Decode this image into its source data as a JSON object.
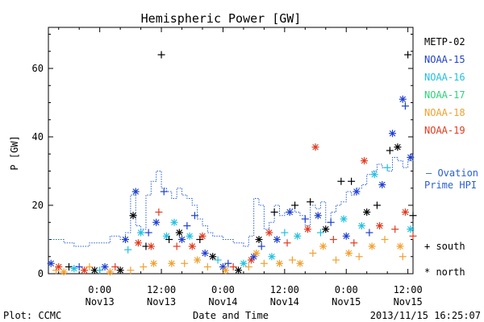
{
  "chart_data": {
    "type": "scatter",
    "title": "Hemispheric Power [GW]",
    "ylabel": "P [GW]",
    "xlabel": "Date and Time",
    "footer_left": "Plot: CCMC",
    "footer_right": "2013/11/15 16:25:07",
    "xlim": [
      -10,
      61
    ],
    "ylim": [
      0,
      72
    ],
    "yticks": [
      0,
      20,
      40,
      60
    ],
    "xticks": [
      {
        "x": 0,
        "time": "0:00",
        "date": "Nov13"
      },
      {
        "x": 12,
        "time": "12:00",
        "date": "Nov13"
      },
      {
        "x": 24,
        "time": "0:00",
        "date": "Nov14"
      },
      {
        "x": 36,
        "time": "12:00",
        "date": "Nov14"
      },
      {
        "x": 48,
        "time": "0:00",
        "date": "Nov15"
      },
      {
        "x": 60,
        "time": "12:00",
        "date": "Nov15"
      }
    ],
    "legend": {
      "satellites": [
        {
          "name": "METP-02",
          "color": "#000000"
        },
        {
          "name": "NOAA-15",
          "color": "#1f3fd0"
        },
        {
          "name": "NOAA-16",
          "color": "#22c0e0"
        },
        {
          "name": "NOAA-17",
          "color": "#2ed27a"
        },
        {
          "name": "NOAA-18",
          "color": "#f2a030"
        },
        {
          "name": "NOAA-19",
          "color": "#e03a1e"
        }
      ],
      "ovation_label_1": "— Ovation",
      "ovation_label_2": "Prime HPI",
      "ovation_color": "#2a5fd6",
      "south_label": "+ south",
      "north_label": "* north"
    },
    "ovation": [
      {
        "x": -10,
        "y": 10
      },
      {
        "x": -7,
        "y": 9
      },
      {
        "x": -5,
        "y": 8
      },
      {
        "x": -2,
        "y": 9
      },
      {
        "x": 0,
        "y": 9
      },
      {
        "x": 2,
        "y": 11
      },
      {
        "x": 4,
        "y": 10
      },
      {
        "x": 5,
        "y": 12
      },
      {
        "x": 6,
        "y": 23
      },
      {
        "x": 7,
        "y": 14
      },
      {
        "x": 8,
        "y": 13
      },
      {
        "x": 9,
        "y": 23
      },
      {
        "x": 10,
        "y": 27
      },
      {
        "x": 11,
        "y": 30
      },
      {
        "x": 12,
        "y": 25
      },
      {
        "x": 13,
        "y": 24
      },
      {
        "x": 14,
        "y": 22
      },
      {
        "x": 15,
        "y": 25
      },
      {
        "x": 16,
        "y": 23
      },
      {
        "x": 17,
        "y": 22
      },
      {
        "x": 18,
        "y": 20
      },
      {
        "x": 19,
        "y": 16
      },
      {
        "x": 20,
        "y": 14
      },
      {
        "x": 21,
        "y": 12
      },
      {
        "x": 22,
        "y": 11
      },
      {
        "x": 24,
        "y": 10
      },
      {
        "x": 26,
        "y": 9
      },
      {
        "x": 28,
        "y": 8
      },
      {
        "x": 29,
        "y": 11
      },
      {
        "x": 30,
        "y": 22
      },
      {
        "x": 31,
        "y": 20
      },
      {
        "x": 32,
        "y": 13
      },
      {
        "x": 33,
        "y": 15
      },
      {
        "x": 34,
        "y": 20
      },
      {
        "x": 35,
        "y": 17
      },
      {
        "x": 36,
        "y": 18
      },
      {
        "x": 37,
        "y": 19
      },
      {
        "x": 38,
        "y": 18
      },
      {
        "x": 39,
        "y": 17
      },
      {
        "x": 40,
        "y": 14
      },
      {
        "x": 41,
        "y": 20
      },
      {
        "x": 42,
        "y": 19
      },
      {
        "x": 43,
        "y": 21
      },
      {
        "x": 44,
        "y": 15
      },
      {
        "x": 45,
        "y": 18
      },
      {
        "x": 46,
        "y": 20
      },
      {
        "x": 47,
        "y": 21
      },
      {
        "x": 48,
        "y": 24
      },
      {
        "x": 49,
        "y": 23
      },
      {
        "x": 50,
        "y": 25
      },
      {
        "x": 51,
        "y": 26
      },
      {
        "x": 52,
        "y": 29
      },
      {
        "x": 53,
        "y": 30
      },
      {
        "x": 54,
        "y": 32
      },
      {
        "x": 55,
        "y": 31
      },
      {
        "x": 56,
        "y": 30
      },
      {
        "x": 57,
        "y": 34
      },
      {
        "x": 58,
        "y": 33
      },
      {
        "x": 59,
        "y": 31
      },
      {
        "x": 60,
        "y": 33
      },
      {
        "x": 61,
        "y": 35
      }
    ],
    "points": [
      {
        "x": -9.5,
        "y": 3,
        "sat": "NOAA-15",
        "hemi": "north"
      },
      {
        "x": -8.5,
        "y": 1,
        "sat": "NOAA-18",
        "hemi": "south"
      },
      {
        "x": -8,
        "y": 2,
        "sat": "NOAA-19",
        "hemi": "north"
      },
      {
        "x": -7,
        "y": 0.5,
        "sat": "NOAA-18",
        "hemi": "north"
      },
      {
        "x": -6,
        "y": 2,
        "sat": "METP-02",
        "hemi": "south"
      },
      {
        "x": -5,
        "y": 1.5,
        "sat": "NOAA-16",
        "hemi": "north"
      },
      {
        "x": -4,
        "y": 2,
        "sat": "NOAA-15",
        "hemi": "south"
      },
      {
        "x": -3,
        "y": 1,
        "sat": "NOAA-19",
        "hemi": "north"
      },
      {
        "x": -2,
        "y": 2,
        "sat": "NOAA-18",
        "hemi": "south"
      },
      {
        "x": -1,
        "y": 1,
        "sat": "METP-02",
        "hemi": "north"
      },
      {
        "x": 0,
        "y": 1,
        "sat": "NOAA-16",
        "hemi": "south"
      },
      {
        "x": 1,
        "y": 2,
        "sat": "NOAA-15",
        "hemi": "north"
      },
      {
        "x": 2,
        "y": 0.5,
        "sat": "NOAA-18",
        "hemi": "north"
      },
      {
        "x": 3,
        "y": 2,
        "sat": "NOAA-19",
        "hemi": "south"
      },
      {
        "x": 4,
        "y": 1,
        "sat": "METP-02",
        "hemi": "north"
      },
      {
        "x": 5,
        "y": 10,
        "sat": "NOAA-15",
        "hemi": "north"
      },
      {
        "x": 5.5,
        "y": 7,
        "sat": "NOAA-16",
        "hemi": "south"
      },
      {
        "x": 6,
        "y": 1,
        "sat": "NOAA-18",
        "hemi": "south"
      },
      {
        "x": 6.5,
        "y": 17,
        "sat": "METP-02",
        "hemi": "north"
      },
      {
        "x": 7,
        "y": 24,
        "sat": "NOAA-15",
        "hemi": "north"
      },
      {
        "x": 7.5,
        "y": 9,
        "sat": "NOAA-19",
        "hemi": "north"
      },
      {
        "x": 8,
        "y": 12,
        "sat": "NOAA-16",
        "hemi": "north"
      },
      {
        "x": 8.5,
        "y": 2,
        "sat": "NOAA-18",
        "hemi": "south"
      },
      {
        "x": 9,
        "y": 8,
        "sat": "METP-02",
        "hemi": "south"
      },
      {
        "x": 9.5,
        "y": 12,
        "sat": "NOAA-15",
        "hemi": "south"
      },
      {
        "x": 10,
        "y": 8,
        "sat": "NOAA-19",
        "hemi": "north"
      },
      {
        "x": 10.5,
        "y": 3,
        "sat": "NOAA-18",
        "hemi": "north"
      },
      {
        "x": 11,
        "y": 15,
        "sat": "NOAA-15",
        "hemi": "north"
      },
      {
        "x": 11.5,
        "y": 18,
        "sat": "NOAA-19",
        "hemi": "south"
      },
      {
        "x": 12,
        "y": 64,
        "sat": "METP-02",
        "hemi": "south"
      },
      {
        "x": 12.5,
        "y": 24,
        "sat": "NOAA-15",
        "hemi": "south"
      },
      {
        "x": 13,
        "y": 11,
        "sat": "NOAA-16",
        "hemi": "north"
      },
      {
        "x": 13.5,
        "y": 10,
        "sat": "METP-02",
        "hemi": "south"
      },
      {
        "x": 14,
        "y": 3,
        "sat": "NOAA-18",
        "hemi": "north"
      },
      {
        "x": 14.5,
        "y": 15,
        "sat": "NOAA-16",
        "hemi": "north"
      },
      {
        "x": 15,
        "y": 8,
        "sat": "NOAA-19",
        "hemi": "south"
      },
      {
        "x": 15.5,
        "y": 12,
        "sat": "METP-02",
        "hemi": "north"
      },
      {
        "x": 16,
        "y": 10,
        "sat": "NOAA-15",
        "hemi": "north"
      },
      {
        "x": 16.5,
        "y": 3,
        "sat": "NOAA-18",
        "hemi": "south"
      },
      {
        "x": 17,
        "y": 14,
        "sat": "NOAA-15",
        "hemi": "south"
      },
      {
        "x": 17.5,
        "y": 11,
        "sat": "NOAA-16",
        "hemi": "north"
      },
      {
        "x": 18,
        "y": 8,
        "sat": "NOAA-19",
        "hemi": "north"
      },
      {
        "x": 18.5,
        "y": 17,
        "sat": "NOAA-15",
        "hemi": "south"
      },
      {
        "x": 19,
        "y": 4,
        "sat": "NOAA-18",
        "hemi": "north"
      },
      {
        "x": 19.5,
        "y": 10,
        "sat": "METP-02",
        "hemi": "south"
      },
      {
        "x": 20,
        "y": 11,
        "sat": "NOAA-19",
        "hemi": "north"
      },
      {
        "x": 20.5,
        "y": 6,
        "sat": "NOAA-15",
        "hemi": "north"
      },
      {
        "x": 21,
        "y": 2,
        "sat": "NOAA-18",
        "hemi": "south"
      },
      {
        "x": 22,
        "y": 5,
        "sat": "METP-02",
        "hemi": "north"
      },
      {
        "x": 23,
        "y": 4,
        "sat": "NOAA-16",
        "hemi": "south"
      },
      {
        "x": 24,
        "y": 2,
        "sat": "NOAA-15",
        "hemi": "north"
      },
      {
        "x": 24.5,
        "y": 1,
        "sat": "NOAA-18",
        "hemi": "north"
      },
      {
        "x": 25,
        "y": 3,
        "sat": "NOAA-15",
        "hemi": "south"
      },
      {
        "x": 26,
        "y": 2,
        "sat": "NOAA-19",
        "hemi": "south"
      },
      {
        "x": 27,
        "y": 1,
        "sat": "METP-02",
        "hemi": "north"
      },
      {
        "x": 28,
        "y": 3,
        "sat": "NOAA-16",
        "hemi": "north"
      },
      {
        "x": 29,
        "y": 2,
        "sat": "NOAA-18",
        "hemi": "south"
      },
      {
        "x": 29.5,
        "y": 4,
        "sat": "NOAA-19",
        "hemi": "north"
      },
      {
        "x": 30,
        "y": 5,
        "sat": "NOAA-15",
        "hemi": "north"
      },
      {
        "x": 30.5,
        "y": 6,
        "sat": "NOAA-18",
        "hemi": "north"
      },
      {
        "x": 31,
        "y": 10,
        "sat": "METP-02",
        "hemi": "north"
      },
      {
        "x": 31.5,
        "y": 8,
        "sat": "NOAA-15",
        "hemi": "south"
      },
      {
        "x": 32,
        "y": 3,
        "sat": "NOAA-18",
        "hemi": "south"
      },
      {
        "x": 33,
        "y": 12,
        "sat": "NOAA-19",
        "hemi": "north"
      },
      {
        "x": 33.5,
        "y": 5,
        "sat": "NOAA-16",
        "hemi": "north"
      },
      {
        "x": 34,
        "y": 18,
        "sat": "METP-02",
        "hemi": "south"
      },
      {
        "x": 34.5,
        "y": 10,
        "sat": "NOAA-15",
        "hemi": "north"
      },
      {
        "x": 35,
        "y": 3,
        "sat": "NOAA-18",
        "hemi": "north"
      },
      {
        "x": 36,
        "y": 12,
        "sat": "NOAA-16",
        "hemi": "south"
      },
      {
        "x": 36.5,
        "y": 9,
        "sat": "NOAA-19",
        "hemi": "south"
      },
      {
        "x": 37,
        "y": 18,
        "sat": "NOAA-15",
        "hemi": "north"
      },
      {
        "x": 37.5,
        "y": 4,
        "sat": "NOAA-18",
        "hemi": "south"
      },
      {
        "x": 38,
        "y": 20,
        "sat": "METP-02",
        "hemi": "south"
      },
      {
        "x": 38.5,
        "y": 11,
        "sat": "NOAA-16",
        "hemi": "north"
      },
      {
        "x": 39,
        "y": 3,
        "sat": "NOAA-18",
        "hemi": "north"
      },
      {
        "x": 40,
        "y": 16,
        "sat": "NOAA-15",
        "hemi": "south"
      },
      {
        "x": 40.5,
        "y": 13,
        "sat": "NOAA-19",
        "hemi": "north"
      },
      {
        "x": 41,
        "y": 21,
        "sat": "METP-02",
        "hemi": "south"
      },
      {
        "x": 41.5,
        "y": 6,
        "sat": "NOAA-18",
        "hemi": "south"
      },
      {
        "x": 42,
        "y": 37,
        "sat": "NOAA-19",
        "hemi": "north"
      },
      {
        "x": 42.5,
        "y": 17,
        "sat": "NOAA-15",
        "hemi": "north"
      },
      {
        "x": 43,
        "y": 12,
        "sat": "NOAA-16",
        "hemi": "south"
      },
      {
        "x": 43.5,
        "y": 8,
        "sat": "NOAA-18",
        "hemi": "north"
      },
      {
        "x": 44,
        "y": 13,
        "sat": "METP-02",
        "hemi": "north"
      },
      {
        "x": 45,
        "y": 15,
        "sat": "NOAA-15",
        "hemi": "south"
      },
      {
        "x": 45.5,
        "y": 10,
        "sat": "NOAA-19",
        "hemi": "south"
      },
      {
        "x": 46,
        "y": 4,
        "sat": "NOAA-18",
        "hemi": "south"
      },
      {
        "x": 47,
        "y": 27,
        "sat": "METP-02",
        "hemi": "south"
      },
      {
        "x": 47.5,
        "y": 16,
        "sat": "NOAA-16",
        "hemi": "north"
      },
      {
        "x": 48,
        "y": 11,
        "sat": "NOAA-15",
        "hemi": "north"
      },
      {
        "x": 48.5,
        "y": 6,
        "sat": "NOAA-18",
        "hemi": "north"
      },
      {
        "x": 49,
        "y": 27,
        "sat": "METP-02",
        "hemi": "south"
      },
      {
        "x": 49.5,
        "y": 9,
        "sat": "NOAA-19",
        "hemi": "south"
      },
      {
        "x": 50,
        "y": 24,
        "sat": "NOAA-15",
        "hemi": "north"
      },
      {
        "x": 50.5,
        "y": 5,
        "sat": "NOAA-18",
        "hemi": "south"
      },
      {
        "x": 51,
        "y": 14,
        "sat": "NOAA-16",
        "hemi": "north"
      },
      {
        "x": 51.5,
        "y": 33,
        "sat": "NOAA-19",
        "hemi": "north"
      },
      {
        "x": 52,
        "y": 18,
        "sat": "METP-02",
        "hemi": "north"
      },
      {
        "x": 52.5,
        "y": 12,
        "sat": "NOAA-15",
        "hemi": "south"
      },
      {
        "x": 53,
        "y": 8,
        "sat": "NOAA-18",
        "hemi": "north"
      },
      {
        "x": 53.5,
        "y": 29,
        "sat": "NOAA-16",
        "hemi": "north"
      },
      {
        "x": 54,
        "y": 20,
        "sat": "METP-02",
        "hemi": "south"
      },
      {
        "x": 54.5,
        "y": 14,
        "sat": "NOAA-19",
        "hemi": "north"
      },
      {
        "x": 55,
        "y": 26,
        "sat": "NOAA-15",
        "hemi": "north"
      },
      {
        "x": 55.5,
        "y": 10,
        "sat": "NOAA-18",
        "hemi": "south"
      },
      {
        "x": 56,
        "y": 31,
        "sat": "NOAA-16",
        "hemi": "south"
      },
      {
        "x": 56.5,
        "y": 36,
        "sat": "METP-02",
        "hemi": "south"
      },
      {
        "x": 57,
        "y": 41,
        "sat": "NOAA-15",
        "hemi": "north"
      },
      {
        "x": 57.5,
        "y": 13,
        "sat": "NOAA-19",
        "hemi": "south"
      },
      {
        "x": 58,
        "y": 37,
        "sat": "METP-02",
        "hemi": "north"
      },
      {
        "x": 58.5,
        "y": 8,
        "sat": "NOAA-18",
        "hemi": "north"
      },
      {
        "x": 59,
        "y": 51,
        "sat": "NOAA-15",
        "hemi": "north"
      },
      {
        "x": 59.5,
        "y": 49,
        "sat": "NOAA-15",
        "hemi": "south"
      },
      {
        "x": 59.5,
        "y": 18,
        "sat": "NOAA-19",
        "hemi": "north"
      },
      {
        "x": 60,
        "y": 64,
        "sat": "METP-02",
        "hemi": "south"
      },
      {
        "x": 60.5,
        "y": 34,
        "sat": "NOAA-15",
        "hemi": "north"
      },
      {
        "x": 60.5,
        "y": 13,
        "sat": "NOAA-16",
        "hemi": "north"
      },
      {
        "x": 61,
        "y": 17,
        "sat": "METP-02",
        "hemi": "south"
      },
      {
        "x": 61,
        "y": 11,
        "sat": "NOAA-19",
        "hemi": "south"
      },
      {
        "x": 59,
        "y": 5,
        "sat": "NOAA-18",
        "hemi": "south"
      }
    ]
  }
}
